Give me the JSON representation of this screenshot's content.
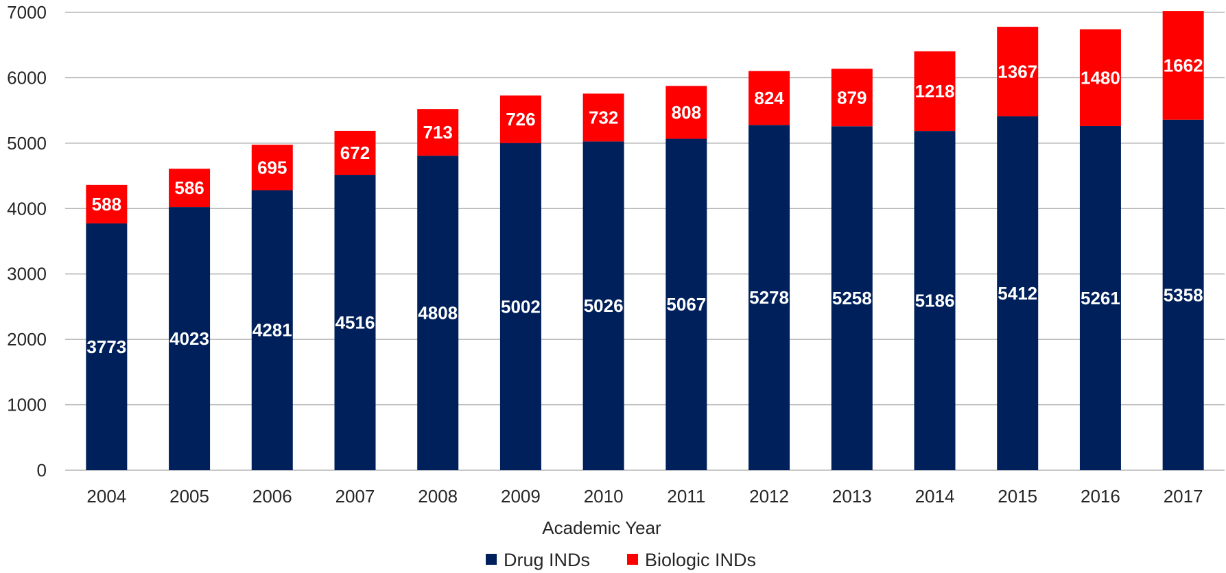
{
  "chart_data": {
    "type": "bar",
    "stacked": true,
    "categories": [
      "2004",
      "2005",
      "2006",
      "2007",
      "2008",
      "2009",
      "2010",
      "2011",
      "2012",
      "2013",
      "2014",
      "2015",
      "2016",
      "2017"
    ],
    "series": [
      {
        "name": "Drug INDs",
        "color": "#00205B",
        "values": [
          3773,
          4023,
          4281,
          4516,
          4808,
          5002,
          5026,
          5067,
          5278,
          5258,
          5186,
          5412,
          5261,
          5358
        ]
      },
      {
        "name": "Biologic INDs",
        "color": "#FF0000",
        "values": [
          588,
          586,
          695,
          672,
          713,
          726,
          732,
          808,
          824,
          879,
          1218,
          1367,
          1480,
          1662
        ]
      }
    ],
    "xlabel": "Academic Year",
    "ylabel": "",
    "ylim": [
      0,
      7000
    ],
    "yticks": [
      "0",
      "1000",
      "2000",
      "3000",
      "4000",
      "5000",
      "6000",
      "7000"
    ],
    "grid": true,
    "legend_position": "bottom"
  }
}
